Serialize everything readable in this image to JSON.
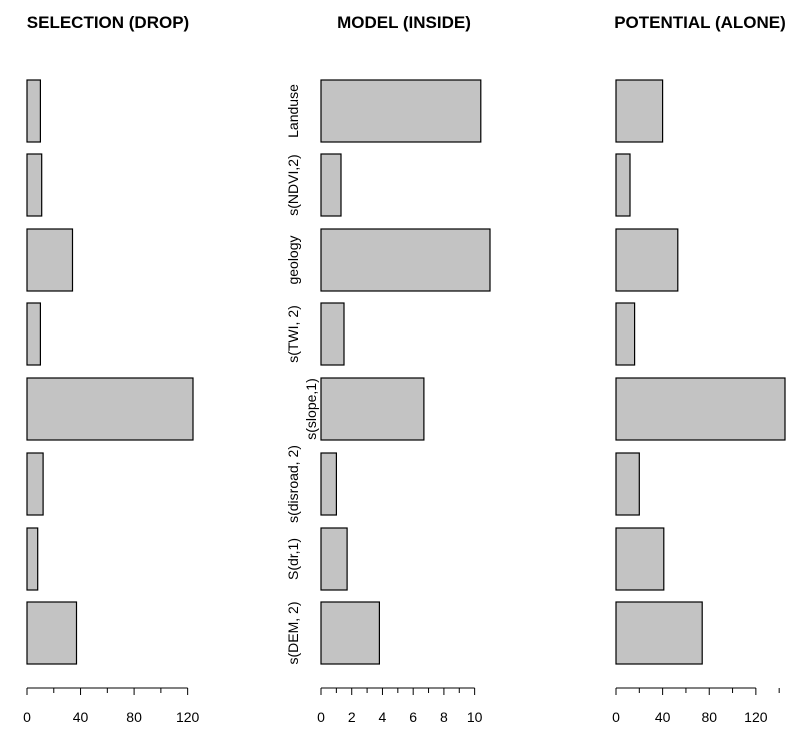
{
  "chart_data": {
    "type": "bar",
    "orientation": "horizontal",
    "categories": [
      "Landuse",
      "s(NDVI,2)",
      "geology",
      "s(TWI, 2)",
      "s(slope,1)",
      "s(disroad, 2)",
      "S(dr,1)",
      "s(DEM, 2)"
    ],
    "panels": [
      {
        "title": "SELECTION (DROP)",
        "values": [
          10,
          11,
          34,
          10,
          124,
          12,
          8,
          37
        ],
        "xlim": [
          0,
          130
        ],
        "ticks": [
          0,
          40,
          80,
          120
        ],
        "minor_ticks": [
          20,
          60,
          100
        ]
      },
      {
        "title": "MODEL (INSIDE)",
        "values": [
          10.4,
          1.3,
          11.0,
          1.5,
          6.7,
          1.0,
          1.7,
          3.8
        ],
        "xlim": [
          0,
          11
        ],
        "ticks": [
          0,
          2,
          4,
          6,
          8,
          10
        ],
        "minor_ticks": [
          1,
          3,
          5,
          7,
          9
        ]
      },
      {
        "title": "POTENTIAL (ALONE)",
        "values": [
          40,
          12,
          53,
          16,
          145,
          20,
          41,
          74
        ],
        "xlim": [
          0,
          150
        ],
        "ticks": [
          0,
          40,
          80,
          120
        ],
        "minor_ticks": [
          20,
          60,
          100,
          140
        ]
      }
    ],
    "bar_color": "#c3c3c3",
    "grid": false,
    "legend": "none"
  }
}
